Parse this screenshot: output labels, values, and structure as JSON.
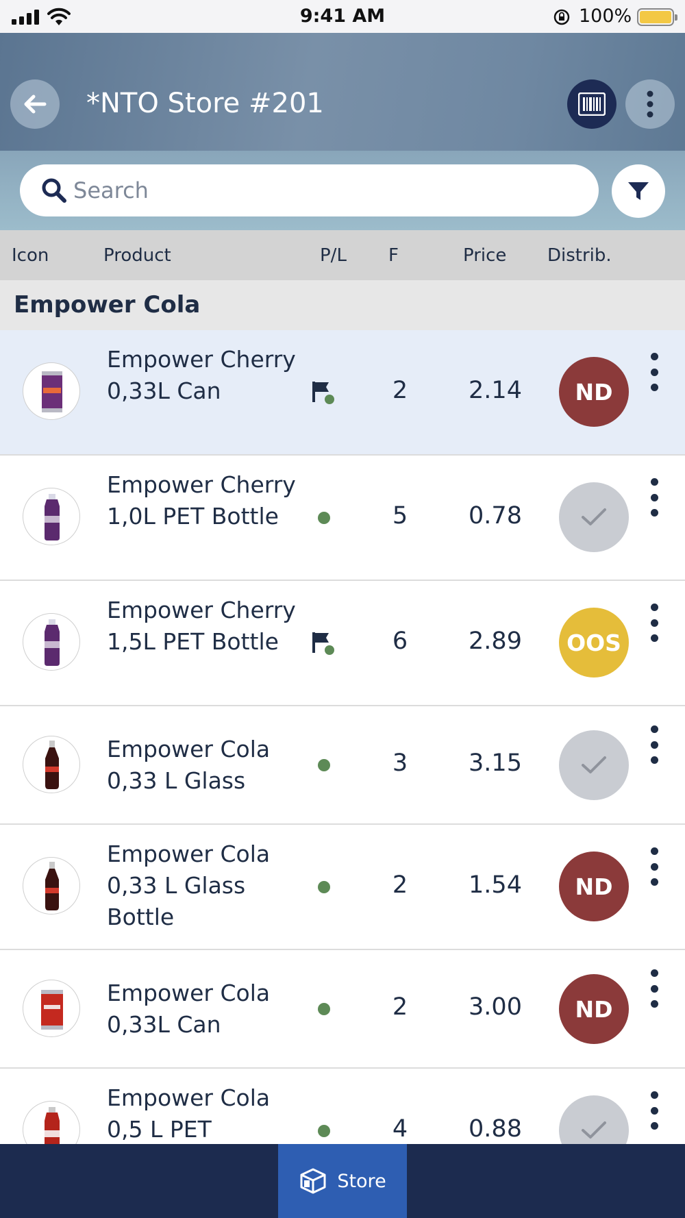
{
  "status_bar": {
    "time": "9:41 AM",
    "battery": "100%"
  },
  "header": {
    "title": "*NTO Store #201"
  },
  "search": {
    "placeholder": "Search",
    "value": ""
  },
  "columns": [
    "Icon",
    "Product",
    "P/L",
    "F",
    "Price",
    "Distrib."
  ],
  "group": {
    "name": "Empower Cola"
  },
  "products": [
    {
      "name": "Empower Cherry 0,33L Can",
      "pl": "flag",
      "facing": "2",
      "price": "2.14",
      "distrib": "ND",
      "distrib_status": "nd",
      "image": "purple-can",
      "selected": true
    },
    {
      "name": "Empower Cherry 1,0L PET Bottle",
      "pl": "dot",
      "facing": "5",
      "price": "0.78",
      "distrib": "",
      "distrib_status": "ok",
      "image": "purple-pet"
    },
    {
      "name": "Empower Cherry 1,5L PET Bottle",
      "pl": "flag",
      "facing": "6",
      "price": "2.89",
      "distrib": "OOS",
      "distrib_status": "oos",
      "image": "purple-pet"
    },
    {
      "name": "Empower Cola 0,33 L Glass",
      "pl": "dot",
      "facing": "3",
      "price": "3.15",
      "distrib": "",
      "distrib_status": "ok",
      "image": "cola-glass"
    },
    {
      "name": "Empower Cola 0,33 L Glass Bottle",
      "pl": "dot",
      "facing": "2",
      "price": "1.54",
      "distrib": "ND",
      "distrib_status": "nd",
      "image": "cola-glass"
    },
    {
      "name": "Empower Cola 0,33L Can",
      "pl": "dot",
      "facing": "2",
      "price": "3.00",
      "distrib": "ND",
      "distrib_status": "nd",
      "image": "red-can"
    },
    {
      "name": "Empower Cola 0,5 L PET",
      "pl": "dot",
      "facing": "4",
      "price": "0.88",
      "distrib": "",
      "distrib_status": "ok",
      "image": "red-pet"
    }
  ],
  "bottom_nav": {
    "store_label": "Store"
  },
  "colors": {
    "nd": "#8b3a3a",
    "oos": "#e5bd3a",
    "ok": "#c9ccd2",
    "nav": "#1c2b4f",
    "active_tab": "#2e5eb2"
  }
}
